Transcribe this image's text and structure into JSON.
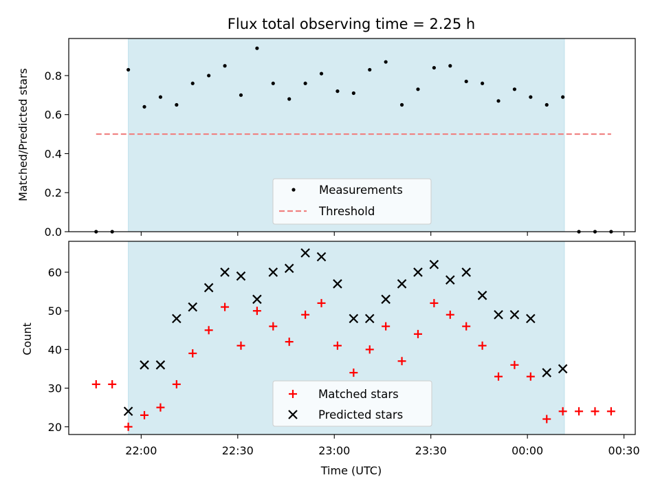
{
  "chart_data": {
    "type": "scatter",
    "title": "Flux total observing time = 2.25 h",
    "xlabel": "Time (UTC)",
    "x_tick_labels": [
      "22:00",
      "22:30",
      "23:00",
      "23:30",
      "00:00",
      "00:30"
    ],
    "x_ticks_minutes_since_2200": [
      0,
      30,
      60,
      90,
      120,
      150
    ],
    "xlim_minutes_since_2200": [
      -22.5,
      153.5
    ],
    "observing_window_minutes_since_2200": [
      -4,
      131.5
    ],
    "window_color": "#add8e6",
    "top_panel": {
      "ylabel": "Matched/Predicted stars",
      "ylim": [
        0,
        0.99
      ],
      "y_ticks": [
        0.0,
        0.2,
        0.4,
        0.6,
        0.8
      ],
      "y_tick_labels": [
        "0.0",
        "0.2",
        "0.4",
        "0.6",
        "0.8"
      ],
      "threshold": {
        "name": "Threshold",
        "value": 0.5,
        "x_range": [
          -14,
          146
        ],
        "color": "#f08080",
        "style": "dashed"
      },
      "series": [
        {
          "name": "Measurements",
          "marker": "dot",
          "color": "#000000",
          "x": [
            -14,
            -9,
            -4,
            1,
            6,
            11,
            16,
            21,
            26,
            31,
            36,
            41,
            46,
            51,
            56,
            61,
            66,
            71,
            76,
            81,
            86,
            91,
            96,
            101,
            106,
            111,
            116,
            121,
            126,
            131,
            136,
            141,
            146
          ],
          "y": [
            0.0,
            0.0,
            0.83,
            0.64,
            0.69,
            0.65,
            0.76,
            0.8,
            0.85,
            0.7,
            0.94,
            0.76,
            0.68,
            0.76,
            0.81,
            0.72,
            0.71,
            0.83,
            0.87,
            0.65,
            0.73,
            0.84,
            0.85,
            0.77,
            0.76,
            0.67,
            0.73,
            0.69,
            0.65,
            0.69,
            0.0,
            0.0,
            0.0
          ]
        }
      ],
      "legend": [
        "Measurements",
        "Threshold"
      ]
    },
    "bottom_panel": {
      "ylabel": "Count",
      "ylim": [
        18,
        68
      ],
      "y_ticks": [
        20,
        30,
        40,
        50,
        60
      ],
      "y_tick_labels": [
        "20",
        "30",
        "40",
        "50",
        "60"
      ],
      "series": [
        {
          "name": "Matched stars",
          "marker": "plus",
          "color": "#ff0000",
          "x": [
            -14,
            -9,
            -4,
            1,
            6,
            11,
            16,
            21,
            26,
            31,
            36,
            41,
            46,
            51,
            56,
            61,
            66,
            71,
            76,
            81,
            86,
            91,
            96,
            101,
            106,
            111,
            116,
            121,
            126,
            131,
            136,
            141,
            146
          ],
          "y": [
            31,
            31,
            20,
            23,
            25,
            31,
            39,
            45,
            51,
            41,
            50,
            46,
            42,
            49,
            52,
            41,
            34,
            40,
            46,
            37,
            44,
            52,
            49,
            46,
            41,
            33,
            36,
            33,
            22,
            24,
            24,
            24,
            24
          ]
        },
        {
          "name": "Predicted stars",
          "marker": "x",
          "color": "#000000",
          "x": [
            -4,
            1,
            6,
            11,
            16,
            21,
            26,
            31,
            36,
            41,
            46,
            51,
            56,
            61,
            66,
            71,
            76,
            81,
            86,
            91,
            96,
            101,
            106,
            111,
            116,
            121,
            126,
            131
          ],
          "y": [
            24,
            36,
            36,
            48,
            51,
            56,
            60,
            59,
            53,
            60,
            61,
            65,
            64,
            57,
            48,
            48,
            53,
            57,
            60,
            62,
            58,
            60,
            54,
            49,
            49,
            48,
            34,
            35
          ]
        }
      ],
      "legend": [
        "Matched stars",
        "Predicted stars"
      ]
    }
  }
}
